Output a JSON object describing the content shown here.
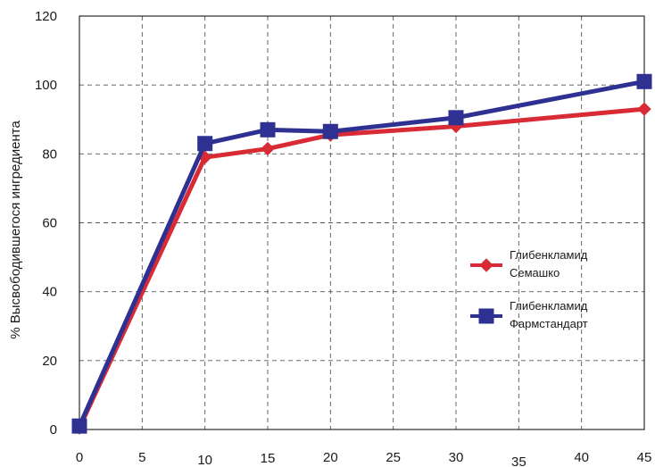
{
  "chart_data": {
    "type": "line",
    "title": "",
    "xlabel": "",
    "ylabel": "% Высвободившегося ингредиента",
    "xlim": [
      0,
      45
    ],
    "ylim": [
      0,
      120
    ],
    "x_ticks": [
      0,
      5,
      10,
      15,
      20,
      25,
      30,
      35,
      40,
      45
    ],
    "y_ticks": [
      0,
      20,
      40,
      60,
      80,
      100,
      120
    ],
    "grid": true,
    "legend_position": "right",
    "series": [
      {
        "name": [
          "Глибенкламид",
          "Семашко"
        ],
        "color": "#d92b35",
        "marker": "diamond",
        "x": [
          0,
          10,
          15,
          20,
          30,
          45
        ],
        "y": [
          0.5,
          79,
          81.5,
          85.5,
          88,
          93
        ]
      },
      {
        "name": [
          "Глибенкламид",
          "Фармстандарт"
        ],
        "color": "#2e3192",
        "marker": "square",
        "x": [
          0,
          10,
          15,
          20,
          30,
          45
        ],
        "y": [
          1,
          83,
          87,
          86.5,
          90.5,
          101
        ]
      }
    ]
  }
}
